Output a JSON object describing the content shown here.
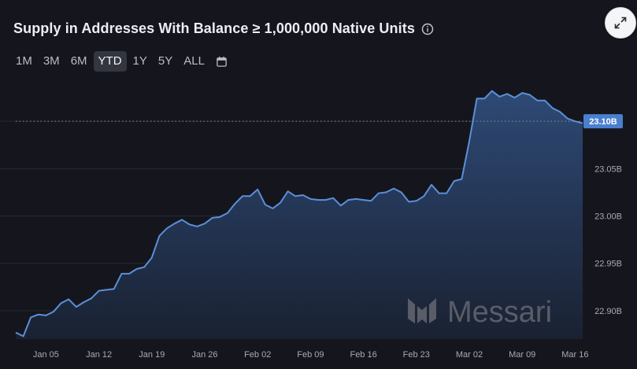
{
  "header": {
    "title": "Supply in Addresses With Balance ≥ 1,000,000 Native Units"
  },
  "range_buttons": [
    {
      "label": "1M",
      "active": false
    },
    {
      "label": "3M",
      "active": false
    },
    {
      "label": "6M",
      "active": false
    },
    {
      "label": "YTD",
      "active": true
    },
    {
      "label": "1Y",
      "active": false
    },
    {
      "label": "5Y",
      "active": false
    },
    {
      "label": "ALL",
      "active": false
    }
  ],
  "icons": {
    "info": "info-icon",
    "calendar": "calendar-icon",
    "expand": "expand-icon"
  },
  "watermark": {
    "text": "Messari"
  },
  "colors": {
    "line": "#5b8fd8",
    "area_top": "#2f4c7a",
    "area_bottom": "#1a2233",
    "current_badge": "#4a7fcf"
  },
  "chart_data": {
    "type": "area",
    "title": "Supply in Addresses With Balance ≥ 1,000,000 Native Units",
    "ylim": [
      22.87,
      23.145
    ],
    "ytick_values": [
      22.9,
      22.95,
      23.0,
      23.05,
      23.1
    ],
    "ytick_labels": [
      "22.90B",
      "22.95B",
      "23.00B",
      "23.05B"
    ],
    "current_value": 23.1,
    "current_label": "23.10B",
    "xlim": [
      0,
      75
    ],
    "xtick_positions": [
      4,
      11,
      18,
      25,
      32,
      39,
      46,
      53,
      60,
      67,
      74
    ],
    "xtick_labels": [
      "Jan 05",
      "Jan 12",
      "Jan 19",
      "Jan 26",
      "Feb 02",
      "Feb 09",
      "Feb 16",
      "Feb 23",
      "Mar 02",
      "Mar 09",
      "Mar 16"
    ],
    "x": [
      0,
      1,
      2,
      3,
      4,
      5,
      6,
      7,
      8,
      9,
      10,
      11,
      12,
      13,
      14,
      15,
      16,
      17,
      18,
      19,
      20,
      21,
      22,
      23,
      24,
      25,
      26,
      27,
      28,
      29,
      30,
      31,
      32,
      33,
      34,
      35,
      36,
      37,
      38,
      39,
      40,
      41,
      42,
      43,
      44,
      45,
      46,
      47,
      48,
      49,
      50,
      51,
      52,
      53,
      54,
      55,
      56,
      57,
      58,
      59,
      60,
      61,
      62,
      63,
      64,
      65,
      66,
      67,
      68,
      69,
      70,
      71,
      72,
      73,
      74,
      75
    ],
    "values": [
      22.877,
      22.873,
      22.893,
      22.896,
      22.895,
      22.899,
      22.908,
      22.912,
      22.904,
      22.909,
      22.913,
      22.921,
      22.922,
      22.923,
      22.939,
      22.939,
      22.944,
      22.946,
      22.956,
      22.979,
      22.987,
      22.992,
      22.996,
      22.991,
      22.989,
      22.992,
      22.998,
      22.999,
      23.003,
      23.013,
      23.021,
      23.021,
      23.028,
      23.012,
      23.008,
      23.014,
      23.026,
      23.021,
      23.022,
      23.018,
      23.017,
      23.017,
      23.019,
      23.011,
      23.017,
      23.018,
      23.017,
      23.016,
      23.024,
      23.025,
      23.029,
      23.025,
      23.015,
      23.016,
      23.021,
      23.033,
      23.024,
      23.024,
      23.037,
      23.039,
      23.079,
      23.124,
      23.124,
      23.132,
      23.126,
      23.129,
      23.125,
      23.13,
      23.128,
      23.122,
      23.122,
      23.114,
      23.11,
      23.103,
      23.1,
      23.098
    ],
    "grid": "horizontal",
    "legend": "none"
  }
}
